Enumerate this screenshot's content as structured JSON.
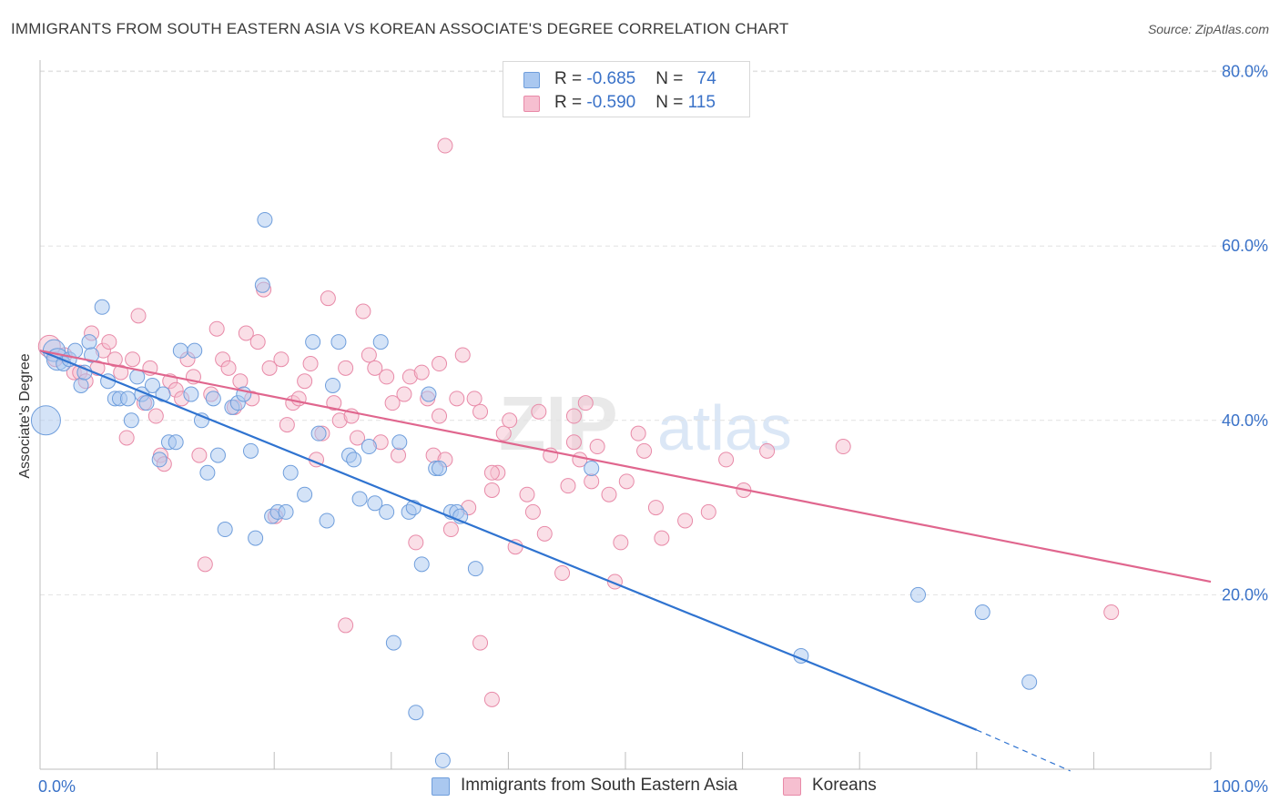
{
  "title": "IMMIGRANTS FROM SOUTH EASTERN ASIA VS KOREAN ASSOCIATE'S DEGREE CORRELATION CHART",
  "source": "Source: ZipAtlas.com",
  "watermark": {
    "zip": "ZIP",
    "atlas": "atlas"
  },
  "colors": {
    "blue_fill": "#aac8f0",
    "blue_stroke": "#6f9edc",
    "blue_line": "#2f73d0",
    "pink_fill": "#f6bfd0",
    "pink_stroke": "#e88aa8",
    "pink_line": "#e0668e",
    "tick_label": "#3a72c8",
    "grid": "#e2e2e2"
  },
  "legend": {
    "rows": [
      {
        "r_label": "R = ",
        "r_value": "-0.685",
        "n_label": "N = ",
        "n_value": "74",
        "color": "blue"
      },
      {
        "r_label": "R = ",
        "r_value": "-0.590",
        "n_label": "N = ",
        "n_value": "115",
        "color": "pink"
      }
    ]
  },
  "bottom_legend": [
    {
      "label": "Immigrants from South Eastern Asia",
      "color": "blue"
    },
    {
      "label": "Koreans",
      "color": "pink"
    }
  ],
  "chart_data": {
    "type": "scatter",
    "title": "IMMIGRANTS FROM SOUTH EASTERN ASIA VS KOREAN ASSOCIATE'S DEGREE CORRELATION CHART",
    "xlabel": "",
    "ylabel": "Associate's Degree",
    "xlim": [
      0,
      100
    ],
    "ylim": [
      0,
      85
    ],
    "x_tick_labels": [
      "0.0%",
      "100.0%"
    ],
    "y_ticks": [
      20,
      40,
      60,
      80
    ],
    "y_tick_labels": [
      "20.0%",
      "40.0%",
      "60.0%",
      "80.0%"
    ],
    "grid": "horizontal dashed",
    "legend_position": "top-center",
    "series": [
      {
        "name": "Immigrants from South Eastern Asia",
        "color": "blue",
        "trend": {
          "x": [
            0,
            80
          ],
          "y": [
            48,
            4.5
          ],
          "dashed_extension_to": [
            88,
            -0.2
          ]
        },
        "points": [
          [
            0.5,
            40,
            3
          ],
          [
            1.2,
            48,
            2
          ],
          [
            1.5,
            47,
            2
          ],
          [
            2,
            46.5,
            1
          ],
          [
            2.5,
            47,
            1
          ],
          [
            3,
            48,
            1
          ],
          [
            3.5,
            44,
            1
          ],
          [
            3.8,
            45.5,
            1
          ],
          [
            4.2,
            49,
            1
          ],
          [
            4.4,
            47.5,
            1
          ],
          [
            5.3,
            53,
            1
          ],
          [
            5.8,
            44.5,
            1
          ],
          [
            6.4,
            42.5,
            1
          ],
          [
            6.8,
            42.5,
            1
          ],
          [
            7.5,
            42.5,
            1
          ],
          [
            7.8,
            40,
            1
          ],
          [
            8.3,
            45,
            1
          ],
          [
            8.7,
            43,
            1
          ],
          [
            9.1,
            42,
            1
          ],
          [
            9.6,
            44,
            1
          ],
          [
            10.2,
            35.5,
            1
          ],
          [
            10.5,
            43,
            1
          ],
          [
            11,
            37.5,
            1
          ],
          [
            11.6,
            37.5,
            1
          ],
          [
            12,
            48,
            1
          ],
          [
            12.9,
            43,
            1
          ],
          [
            13.2,
            48,
            1
          ],
          [
            13.8,
            40,
            1
          ],
          [
            14.3,
            34,
            1
          ],
          [
            14.8,
            42.5,
            1
          ],
          [
            15.2,
            36,
            1
          ],
          [
            15.8,
            27.5,
            1
          ],
          [
            16.4,
            41.5,
            1
          ],
          [
            16.9,
            42,
            1
          ],
          [
            17.4,
            43,
            1
          ],
          [
            18,
            36.5,
            1
          ],
          [
            18.4,
            26.5,
            1
          ],
          [
            19,
            55.5,
            1
          ],
          [
            19.2,
            63,
            1
          ],
          [
            19.8,
            29,
            1
          ],
          [
            20.3,
            29.5,
            1
          ],
          [
            21,
            29.5,
            1
          ],
          [
            21.4,
            34,
            1
          ],
          [
            22.6,
            31.5,
            1
          ],
          [
            23.3,
            49,
            1
          ],
          [
            23.8,
            38.5,
            1
          ],
          [
            24.5,
            28.5,
            1
          ],
          [
            25,
            44,
            1
          ],
          [
            25.5,
            49,
            1
          ],
          [
            26.4,
            36,
            1
          ],
          [
            26.8,
            35.5,
            1
          ],
          [
            27.3,
            31,
            1
          ],
          [
            28.1,
            37,
            1
          ],
          [
            28.6,
            30.5,
            1
          ],
          [
            29.1,
            49,
            1
          ],
          [
            29.6,
            29.5,
            1
          ],
          [
            30.2,
            14.5,
            1
          ],
          [
            30.7,
            37.5,
            1
          ],
          [
            31.5,
            29.5,
            1
          ],
          [
            31.9,
            30,
            1
          ],
          [
            32.6,
            23.5,
            1
          ],
          [
            33.2,
            43,
            1
          ],
          [
            33.8,
            34.5,
            1
          ],
          [
            34.1,
            34.5,
            1
          ],
          [
            35.1,
            29.5,
            1
          ],
          [
            35.6,
            29.5,
            1
          ],
          [
            35.9,
            29,
            1
          ],
          [
            37.2,
            23,
            1
          ],
          [
            32.1,
            6.5,
            1
          ],
          [
            34.4,
            1,
            1
          ],
          [
            47.1,
            34.5,
            1
          ],
          [
            65,
            13,
            1
          ],
          [
            75,
            20,
            1
          ],
          [
            80.5,
            18,
            1
          ],
          [
            84.5,
            10,
            1
          ]
        ]
      },
      {
        "name": "Koreans",
        "color": "pink",
        "trend": {
          "x": [
            0,
            100
          ],
          "y": [
            48,
            21.5
          ]
        },
        "points": [
          [
            0.8,
            48.5,
            2
          ],
          [
            1.3,
            47,
            1
          ],
          [
            2.1,
            47.5,
            1
          ],
          [
            2.9,
            45.5,
            1
          ],
          [
            3.4,
            45.5,
            1
          ],
          [
            3.9,
            44.5,
            1
          ],
          [
            4.4,
            50,
            1
          ],
          [
            4.9,
            46,
            1
          ],
          [
            5.4,
            48,
            1
          ],
          [
            5.9,
            49,
            1
          ],
          [
            6.4,
            47,
            1
          ],
          [
            6.9,
            45.5,
            1
          ],
          [
            7.4,
            38,
            1
          ],
          [
            7.9,
            47,
            1
          ],
          [
            8.4,
            52,
            1
          ],
          [
            8.9,
            42,
            1
          ],
          [
            9.4,
            46,
            1
          ],
          [
            9.9,
            40.5,
            1
          ],
          [
            10.3,
            36,
            1
          ],
          [
            10.6,
            35,
            1
          ],
          [
            11.1,
            44.5,
            1
          ],
          [
            11.6,
            43.5,
            1
          ],
          [
            12.1,
            42.5,
            1
          ],
          [
            12.6,
            47,
            1
          ],
          [
            13.1,
            45,
            1
          ],
          [
            13.6,
            36,
            1
          ],
          [
            14.1,
            23.5,
            1
          ],
          [
            14.6,
            43,
            1
          ],
          [
            15.1,
            50.5,
            1
          ],
          [
            15.6,
            47,
            1
          ],
          [
            16.1,
            46,
            1
          ],
          [
            16.6,
            41.5,
            1
          ],
          [
            17.1,
            44.5,
            1
          ],
          [
            17.6,
            50,
            1
          ],
          [
            18.1,
            42.5,
            1
          ],
          [
            18.6,
            49,
            1
          ],
          [
            19.1,
            55,
            1
          ],
          [
            19.6,
            46,
            1
          ],
          [
            20.1,
            29,
            1
          ],
          [
            20.6,
            47,
            1
          ],
          [
            21.1,
            39.5,
            1
          ],
          [
            21.6,
            42,
            1
          ],
          [
            22.1,
            42.5,
            1
          ],
          [
            22.6,
            44.5,
            1
          ],
          [
            23.1,
            46.5,
            1
          ],
          [
            23.6,
            35.5,
            1
          ],
          [
            24.1,
            38.5,
            1
          ],
          [
            24.6,
            54,
            1
          ],
          [
            25.1,
            42,
            1
          ],
          [
            25.6,
            40,
            1
          ],
          [
            26.1,
            46,
            1
          ],
          [
            26.6,
            40.5,
            1
          ],
          [
            27.1,
            38,
            1
          ],
          [
            27.6,
            52.5,
            1
          ],
          [
            28.1,
            47.5,
            1
          ],
          [
            28.6,
            46,
            1
          ],
          [
            29.1,
            37.5,
            1
          ],
          [
            29.6,
            45,
            1
          ],
          [
            30.1,
            42,
            1
          ],
          [
            30.6,
            36,
            1
          ],
          [
            31.1,
            43,
            1
          ],
          [
            31.6,
            45,
            1
          ],
          [
            32.1,
            26,
            1
          ],
          [
            32.6,
            45.5,
            1
          ],
          [
            33.1,
            42.5,
            1
          ],
          [
            33.6,
            36,
            1
          ],
          [
            34.1,
            46.5,
            1
          ],
          [
            34.6,
            35.5,
            1
          ],
          [
            35.1,
            27.5,
            1
          ],
          [
            35.6,
            42.5,
            1
          ],
          [
            36.1,
            47.5,
            1
          ],
          [
            36.6,
            30,
            1
          ],
          [
            37.1,
            42.5,
            1
          ],
          [
            37.6,
            41,
            1
          ],
          [
            38.6,
            32,
            1
          ],
          [
            39.1,
            34,
            1
          ],
          [
            39.6,
            38.5,
            1
          ],
          [
            40.1,
            40,
            1
          ],
          [
            40.6,
            25.5,
            1
          ],
          [
            41.6,
            31.5,
            1
          ],
          [
            42.1,
            29.5,
            1
          ],
          [
            42.6,
            41,
            1
          ],
          [
            43.1,
            27,
            1
          ],
          [
            43.6,
            36,
            1
          ],
          [
            44.6,
            22.5,
            1
          ],
          [
            45.1,
            32.5,
            1
          ],
          [
            45.6,
            40.5,
            1
          ],
          [
            46.1,
            35.5,
            1
          ],
          [
            46.6,
            42,
            1
          ],
          [
            47.1,
            33,
            1
          ],
          [
            47.6,
            37,
            1
          ],
          [
            48.6,
            31.5,
            1
          ],
          [
            49.1,
            21.5,
            1
          ],
          [
            49.6,
            26,
            1
          ],
          [
            50.1,
            33,
            1
          ],
          [
            51.1,
            38.5,
            1
          ],
          [
            51.6,
            36.5,
            1
          ],
          [
            52.6,
            30,
            1
          ],
          [
            53.1,
            26.5,
            1
          ],
          [
            55.1,
            28.5,
            1
          ],
          [
            57.1,
            29.5,
            1
          ],
          [
            58.6,
            35.5,
            1
          ],
          [
            60.1,
            32,
            1
          ],
          [
            62.1,
            36.5,
            1
          ],
          [
            68.6,
            37,
            1
          ],
          [
            34.6,
            71.5,
            1
          ],
          [
            26.1,
            16.5,
            1
          ],
          [
            37.6,
            14.5,
            1
          ],
          [
            38.6,
            8,
            1
          ],
          [
            91.5,
            18,
            1
          ],
          [
            38.6,
            34,
            1
          ],
          [
            34.1,
            40.5,
            1
          ],
          [
            45.6,
            37.5,
            1
          ]
        ]
      }
    ]
  }
}
